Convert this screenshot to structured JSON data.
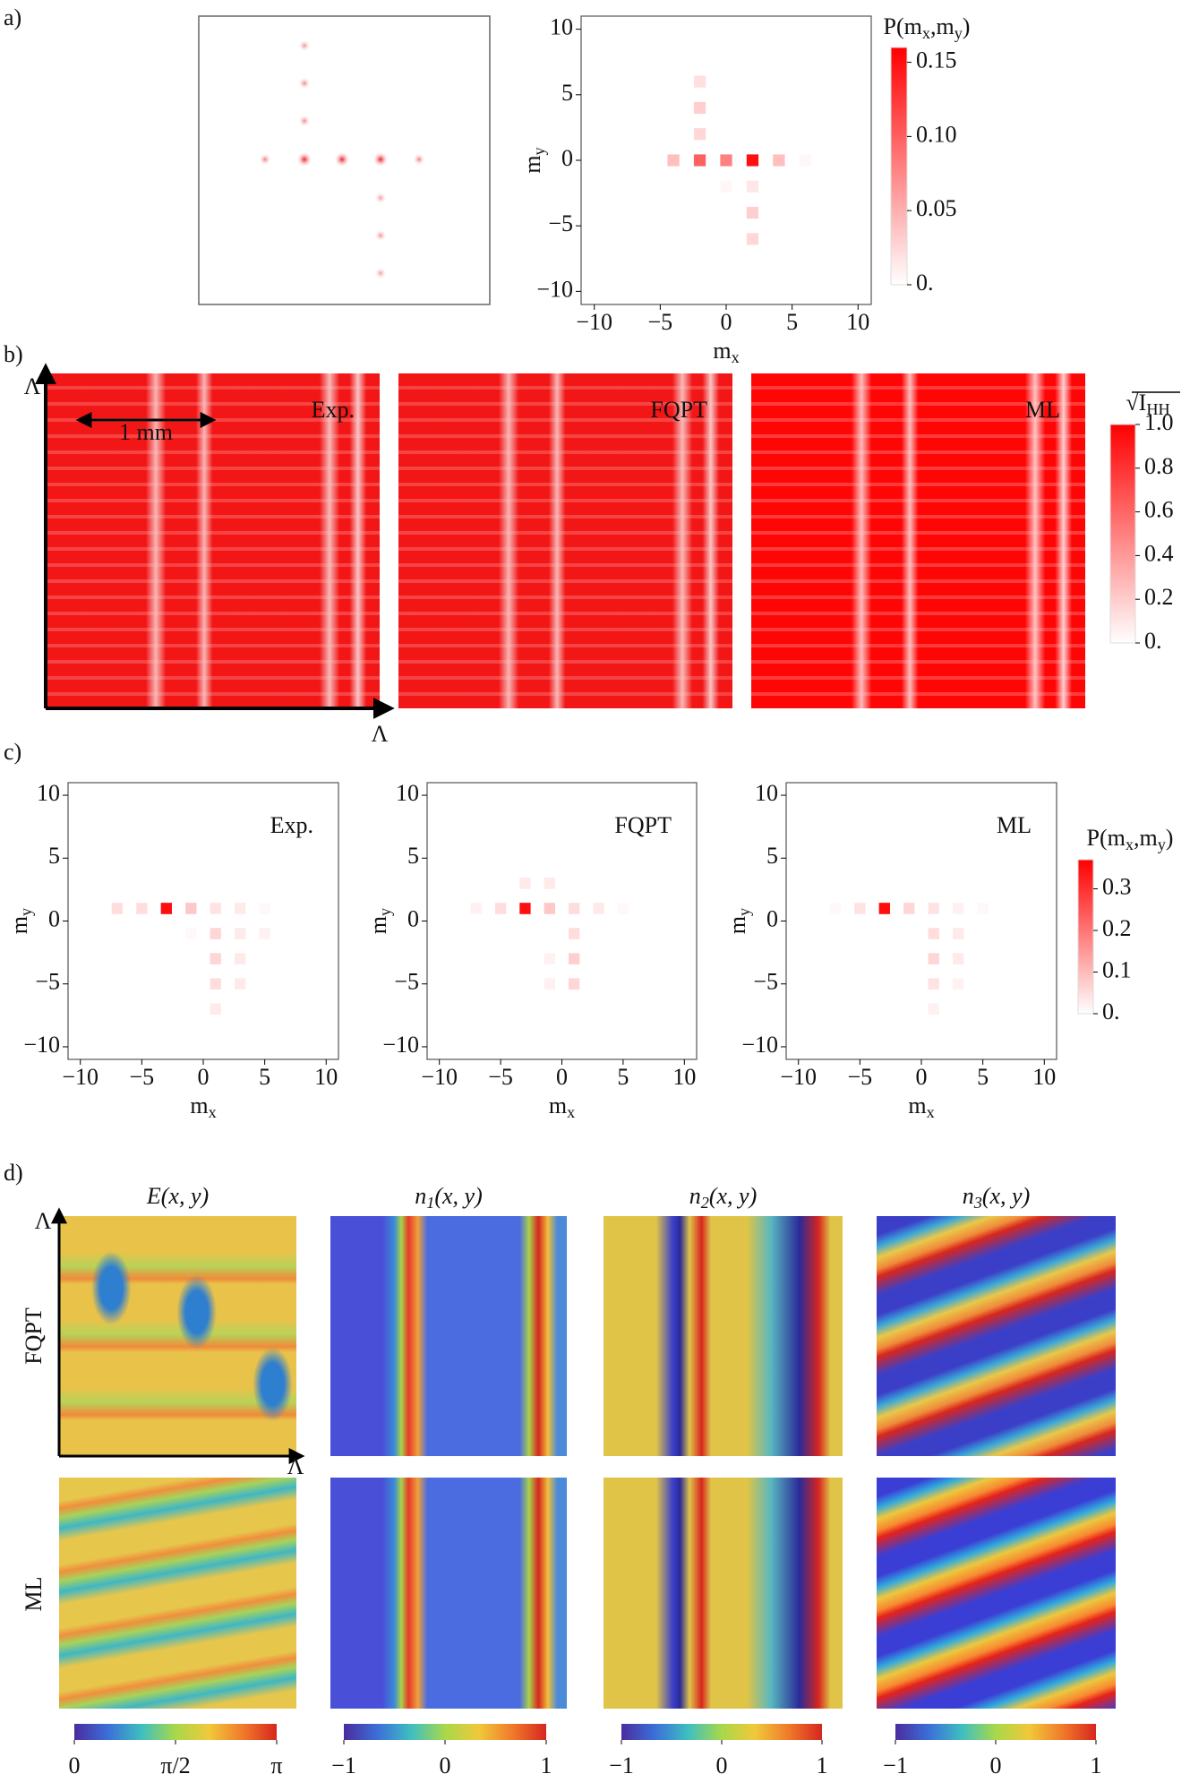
{
  "panel_labels": [
    "a)",
    "b)",
    "c)",
    "d)"
  ],
  "chart_data": [
    {
      "type": "heatmap",
      "xlabel": [
        {
          "text": "m"
        },
        {
          "text": "x",
          "sub": true
        }
      ],
      "ylabel": [
        {
          "text": "m"
        },
        {
          "text": "y",
          "sub": true
        }
      ],
      "xlim": [
        -11,
        11
      ],
      "ylim": [
        -11,
        11
      ],
      "xticks": [
        {
          "value": -10,
          "label": "−10"
        },
        {
          "value": -5,
          "label": "−5"
        },
        0,
        5,
        10
      ],
      "yticks": [
        {
          "value": -10,
          "label": "−10"
        },
        {
          "value": -5,
          "label": "−5"
        },
        0,
        5,
        10
      ],
      "color": "#ff0000",
      "x": [
        -4,
        -2,
        0,
        2,
        4,
        6,
        -2,
        -2,
        -2,
        2,
        2,
        2,
        0
      ],
      "y": [
        0,
        0,
        0,
        0,
        0,
        0,
        2,
        4,
        6,
        -2,
        -4,
        -6,
        -2
      ],
      "values": [
        0.04,
        0.1,
        0.08,
        0.15,
        0.04,
        0.005,
        0.025,
        0.03,
        0.02,
        0.015,
        0.03,
        0.025,
        0.005
      ],
      "zlim": [
        0,
        0.16
      ],
      "zticks": [
        {
          "value": 0,
          "label": "0."
        },
        0.05,
        {
          "value": 0.1,
          "label": "0.10"
        },
        0.15
      ],
      "colorbar_label": [
        {
          "text": "P(m"
        },
        {
          "text": "x",
          "sub": true
        },
        {
          "text": ",m"
        },
        {
          "text": "y",
          "sub": true
        },
        {
          "text": ")"
        }
      ]
    },
    {
      "type": "heatmap",
      "annotation": "Exp.",
      "xlabel": [
        {
          "text": "m"
        },
        {
          "text": "x",
          "sub": true
        }
      ],
      "ylabel": [
        {
          "text": "m"
        },
        {
          "text": "y",
          "sub": true
        }
      ],
      "xlim": [
        -11,
        11
      ],
      "ylim": [
        -11,
        11
      ],
      "xticks": [
        {
          "value": -10,
          "label": "−10"
        },
        {
          "value": -5,
          "label": "−5"
        },
        0,
        5,
        10
      ],
      "yticks": [
        {
          "value": -10,
          "label": "−10"
        },
        {
          "value": -5,
          "label": "−5"
        },
        0,
        5,
        10
      ],
      "color": "#ff0000",
      "x": [
        -7,
        -5,
        -3,
        -1,
        1,
        3,
        5,
        1,
        3,
        5,
        1,
        3,
        1,
        3,
        1,
        -1
      ],
      "y": [
        1,
        1,
        1,
        1,
        1,
        1,
        1,
        -1,
        -1,
        -1,
        -3,
        -3,
        -5,
        -5,
        -7,
        -1
      ],
      "values": [
        0.05,
        0.05,
        0.35,
        0.08,
        0.04,
        0.03,
        0.01,
        0.06,
        0.03,
        0.02,
        0.06,
        0.03,
        0.05,
        0.03,
        0.03,
        0.01
      ],
      "zlim": [
        0,
        0.37
      ]
    },
    {
      "type": "heatmap",
      "annotation": "FQPT",
      "xlabel": [
        {
          "text": "m"
        },
        {
          "text": "x",
          "sub": true
        }
      ],
      "ylabel": [
        {
          "text": "m"
        },
        {
          "text": "y",
          "sub": true
        }
      ],
      "xlim": [
        -11,
        11
      ],
      "ylim": [
        -11,
        11
      ],
      "xticks": [
        {
          "value": -10,
          "label": "−10"
        },
        {
          "value": -5,
          "label": "−5"
        },
        0,
        5,
        10
      ],
      "yticks": [
        {
          "value": -10,
          "label": "−10"
        },
        {
          "value": -5,
          "label": "−5"
        },
        0,
        5,
        10
      ],
      "color": "#ff0000",
      "x": [
        -7,
        -5,
        -3,
        -1,
        1,
        3,
        5,
        -3,
        -1,
        1,
        1,
        -1,
        1,
        -1
      ],
      "y": [
        1,
        1,
        1,
        1,
        1,
        1,
        1,
        3,
        3,
        -1,
        -3,
        -3,
        -5,
        -5
      ],
      "values": [
        0.02,
        0.05,
        0.35,
        0.08,
        0.05,
        0.03,
        0.01,
        0.03,
        0.03,
        0.05,
        0.07,
        0.02,
        0.06,
        0.02
      ],
      "zlim": [
        0,
        0.37
      ]
    },
    {
      "type": "heatmap",
      "annotation": "ML",
      "xlabel": [
        {
          "text": "m"
        },
        {
          "text": "x",
          "sub": true
        }
      ],
      "ylabel": [
        {
          "text": "m"
        },
        {
          "text": "y",
          "sub": true
        }
      ],
      "xlim": [
        -11,
        11
      ],
      "ylim": [
        -11,
        11
      ],
      "xticks": [
        {
          "value": -10,
          "label": "−10"
        },
        {
          "value": -5,
          "label": "−5"
        },
        0,
        5,
        10
      ],
      "yticks": [
        {
          "value": -10,
          "label": "−10"
        },
        {
          "value": -5,
          "label": "−5"
        },
        0,
        5,
        10
      ],
      "color": "#ff0000",
      "x": [
        -7,
        -5,
        -3,
        -1,
        1,
        3,
        5,
        1,
        3,
        1,
        3,
        1,
        3,
        1
      ],
      "y": [
        1,
        1,
        1,
        1,
        1,
        1,
        1,
        -1,
        -1,
        -3,
        -3,
        -5,
        -5,
        -7
      ],
      "values": [
        0.01,
        0.04,
        0.35,
        0.06,
        0.04,
        0.02,
        0.01,
        0.05,
        0.03,
        0.06,
        0.03,
        0.04,
        0.02,
        0.02
      ],
      "zlim": [
        0,
        0.37
      ],
      "zticks": [
        {
          "value": 0,
          "label": "0."
        },
        0.1,
        0.2,
        0.3
      ],
      "colorbar_label": [
        {
          "text": "P(m"
        },
        {
          "text": "x",
          "sub": true
        },
        {
          "text": ",m"
        },
        {
          "text": "y",
          "sub": true
        },
        {
          "text": ")"
        }
      ]
    }
  ],
  "panel_b": {
    "maps": [
      "Exp.",
      "FQPT",
      "ML"
    ],
    "scale_label": "1 mm",
    "axis_label": "Λ",
    "colorbar_label": [
      {
        "text": "√"
      },
      {
        "text": "I"
      },
      {
        "text": "HH",
        "sub": true
      }
    ],
    "zlim": [
      0,
      1
    ],
    "zticks": [
      {
        "value": 0,
        "label": "0."
      },
      0.2,
      0.4,
      0.6,
      0.8,
      {
        "value": 1,
        "label": "1.0"
      }
    ]
  },
  "panel_d": {
    "titles": [
      [
        {
          "text": "E(x, y)"
        }
      ],
      [
        {
          "text": "n"
        },
        {
          "text": "1",
          "sub": true
        },
        {
          "text": "(x, y)"
        }
      ],
      [
        {
          "text": "n"
        },
        {
          "text": "2",
          "sub": true
        },
        {
          "text": "(x, y)"
        }
      ],
      [
        {
          "text": "n"
        },
        {
          "text": "3",
          "sub": true
        },
        {
          "text": "(x, y)"
        }
      ]
    ],
    "rows": [
      "FQPT",
      "ML"
    ],
    "axis_label": "Λ",
    "colorbars": [
      {
        "zlim": [
          0,
          3.1416
        ],
        "zticks": [
          0,
          {
            "value": 1.5708,
            "label": "π/2"
          },
          {
            "value": 3.1416,
            "label": "π"
          }
        ]
      },
      {
        "zlim": [
          -1,
          1
        ],
        "zticks": [
          {
            "value": -1,
            "label": "−1"
          },
          0,
          1
        ]
      },
      {
        "zlim": [
          -1,
          1
        ],
        "zticks": [
          {
            "value": -1,
            "label": "−1"
          },
          0,
          1
        ]
      },
      {
        "zlim": [
          -1,
          1
        ],
        "zticks": [
          {
            "value": -1,
            "label": "−1"
          },
          0,
          1
        ]
      }
    ]
  }
}
